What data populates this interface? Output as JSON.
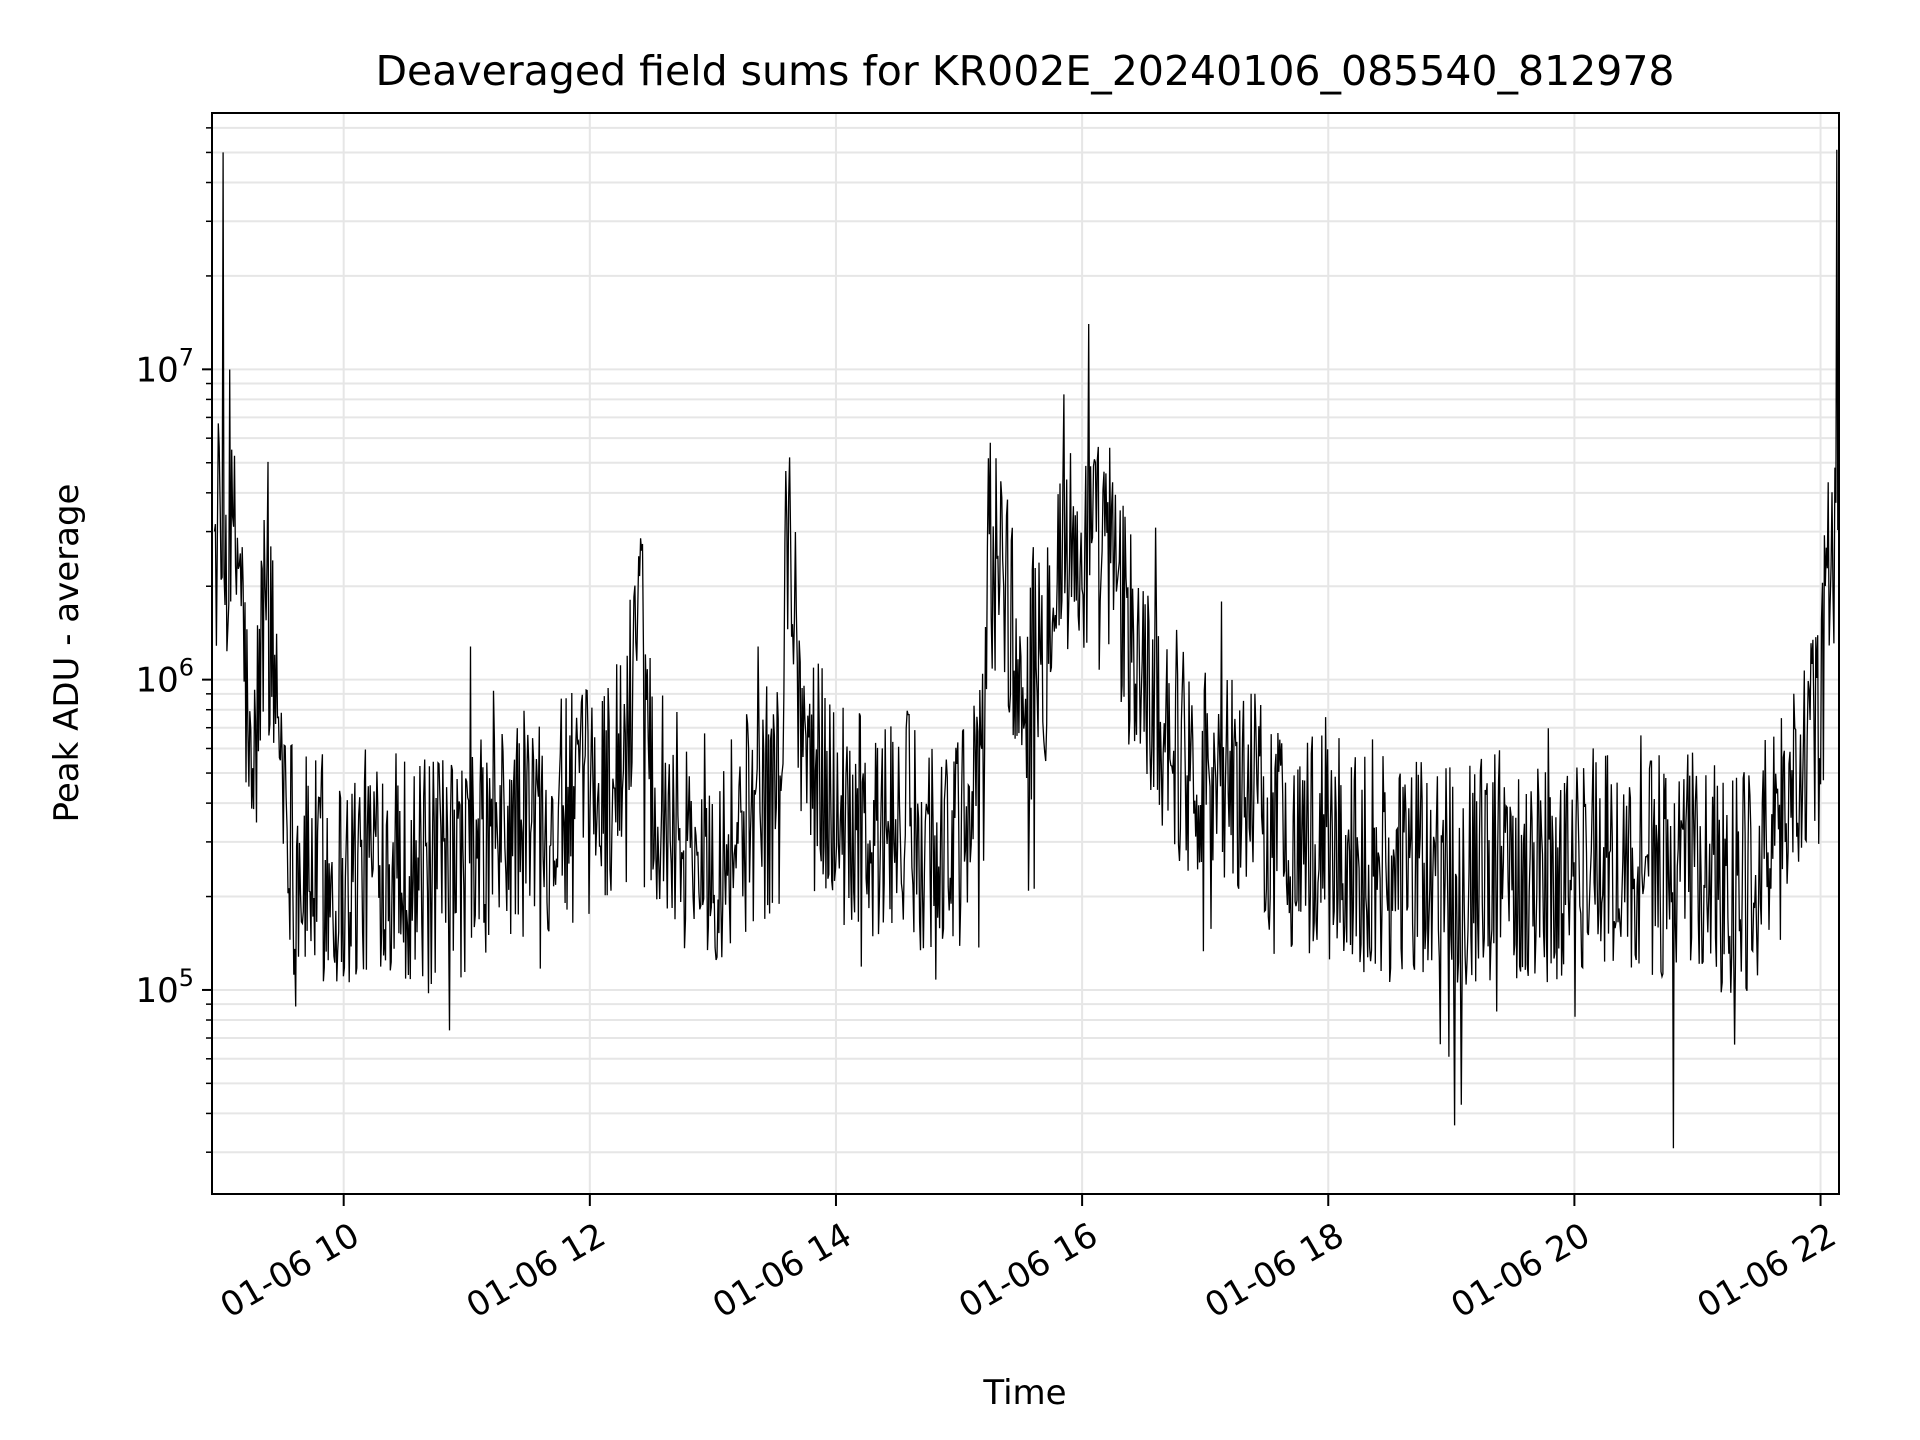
{
  "chart_data": {
    "type": "line",
    "title": "Deaveraged field sums for KR002E_20240106_085540_812978",
    "xlabel": "Time",
    "ylabel": "Peak ADU - average",
    "x_range": [
      "01-06 08:56",
      "01-06 22:09"
    ],
    "xlim_hours": [
      8.93,
      22.15
    ],
    "ylim": [
      22000,
      67000000
    ],
    "yscale": "log",
    "grid": true,
    "line_color": "#000000",
    "x_ticks": [
      {
        "label": "01-06 10",
        "hour": 10
      },
      {
        "label": "01-06 12",
        "hour": 12
      },
      {
        "label": "01-06 14",
        "hour": 14
      },
      {
        "label": "01-06 16",
        "hour": 16
      },
      {
        "label": "01-06 18",
        "hour": 18
      },
      {
        "label": "01-06 20",
        "hour": 20
      },
      {
        "label": "01-06 22",
        "hour": 22
      }
    ],
    "y_ticks": [
      {
        "base": "10",
        "exp": "5",
        "value": 100000
      },
      {
        "base": "10",
        "exp": "6",
        "value": 1000000
      },
      {
        "base": "10",
        "exp": "7",
        "value": 10000000
      }
    ],
    "series": [
      {
        "x_hours": [
          8.95,
          9.02,
          9.25,
          9.36,
          9.6,
          10.0,
          10.3,
          10.5,
          10.75,
          11.0,
          11.25,
          11.5,
          11.8,
          12.0,
          12.3,
          12.4,
          12.5,
          12.8,
          13.0,
          13.3,
          13.55,
          13.6,
          13.75,
          14.0,
          14.3,
          14.5,
          14.8,
          15.0,
          15.2,
          15.25,
          15.5,
          15.7,
          15.85,
          16.05,
          16.3,
          16.5,
          16.8,
          17.0,
          17.3,
          17.5,
          17.8,
          18.0,
          18.3,
          18.5,
          18.8,
          19.0,
          19.3,
          19.5,
          19.8,
          20.0,
          20.3,
          20.5,
          20.8,
          21.0,
          21.3,
          21.6,
          21.8,
          22.0,
          22.13
        ],
        "y_values": [
          3000000,
          50000000,
          350000,
          2000000,
          250000,
          220000,
          280000,
          250000,
          230000,
          260000,
          300000,
          350000,
          380000,
          400000,
          550000,
          2500000,
          500000,
          300000,
          280000,
          350000,
          450000,
          3300000,
          600000,
          400000,
          300000,
          350000,
          300000,
          280000,
          500000,
          5800000,
          800000,
          1200000,
          8300000,
          14000000,
          1800000,
          1000000,
          600000,
          500000,
          450000,
          350000,
          300000,
          280000,
          260000,
          250000,
          230000,
          240000,
          250000,
          260000,
          240000,
          250000,
          260000,
          250000,
          240000,
          250000,
          230000,
          260000,
          500000,
          700000,
          51000000
        ]
      }
    ]
  }
}
